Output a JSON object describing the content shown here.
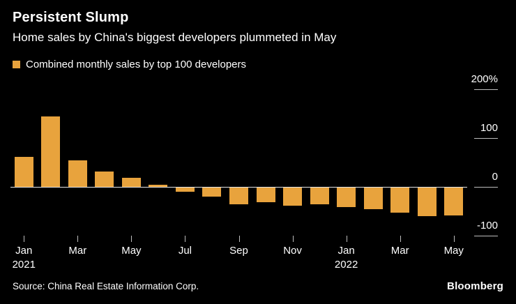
{
  "header": {
    "title": "Persistent Slump",
    "subtitle": "Home sales by China's biggest developers plummeted in May"
  },
  "legend": {
    "label": "Combined monthly sales by top 100 developers",
    "color": "#E8A33D"
  },
  "chart_data": {
    "type": "bar",
    "title": "Persistent Slump",
    "subtitle": "Home sales by China's biggest developers plummeted in May",
    "series_name": "Combined monthly sales by top 100 developers",
    "unit": "%",
    "x": [
      "Jan 2021",
      "Feb 2021",
      "Mar 2021",
      "Apr 2021",
      "May 2021",
      "Jun 2021",
      "Jul 2021",
      "Aug 2021",
      "Sep 2021",
      "Oct 2021",
      "Nov 2021",
      "Dec 2021",
      "Jan 2022",
      "Feb 2022",
      "Mar 2022",
      "Apr 2022",
      "May 2022"
    ],
    "values": [
      62,
      145,
      55,
      32,
      19,
      4,
      -10,
      -20,
      -35,
      -31,
      -39,
      -36,
      -42,
      -46,
      -53,
      -60,
      -59
    ],
    "bar_color": "#E8A33D",
    "ylim": [
      -100,
      200
    ],
    "grid": "right-stub-ticks, full zero line",
    "legend_position": "top-left",
    "yticks": [
      {
        "value": 200,
        "label": "200%"
      },
      {
        "value": 100,
        "label": "100"
      },
      {
        "value": 0,
        "label": "0"
      },
      {
        "value": -100,
        "label": "-100"
      }
    ],
    "xticks": [
      {
        "index": 0,
        "label": "Jan",
        "year": "2021"
      },
      {
        "index": 2,
        "label": "Mar"
      },
      {
        "index": 4,
        "label": "May"
      },
      {
        "index": 6,
        "label": "Jul"
      },
      {
        "index": 8,
        "label": "Sep"
      },
      {
        "index": 10,
        "label": "Nov"
      },
      {
        "index": 12,
        "label": "Jan",
        "year": "2022"
      },
      {
        "index": 14,
        "label": "Mar"
      },
      {
        "index": 16,
        "label": "May"
      }
    ]
  },
  "footer": {
    "source": "Source: China Real Estate Information Corp.",
    "brand": "Bloomberg"
  }
}
